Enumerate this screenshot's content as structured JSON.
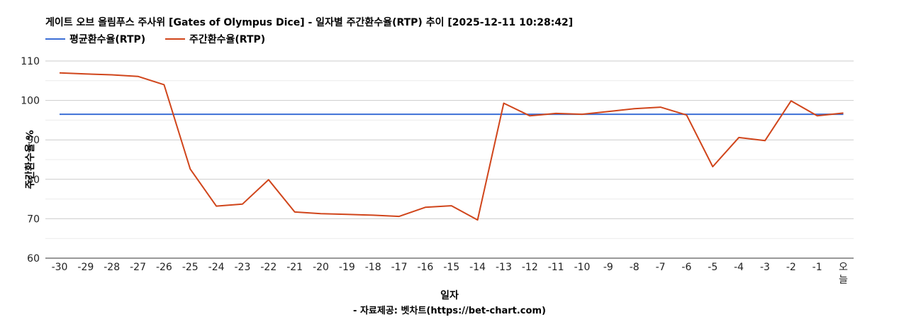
{
  "chart_data": {
    "type": "line",
    "title": "게이트 오브 올림푸스 주사위 [Gates of Olympus Dice] - 일자별 주간환수율(RTP) 추이 [2025-12-11 10:28:42]",
    "xlabel": "일자",
    "ylabel": "주간환수율 %",
    "source": "- 자료제공: 벳차트(https://bet-chart.com)",
    "categories": [
      "-30",
      "-29",
      "-28",
      "-27",
      "-26",
      "-25",
      "-24",
      "-23",
      "-22",
      "-21",
      "-20",
      "-19",
      "-18",
      "-17",
      "-16",
      "-15",
      "-14",
      "-13",
      "-12",
      "-11",
      "-10",
      "-9",
      "-8",
      "-7",
      "-6",
      "-5",
      "-4",
      "-3",
      "-2",
      "-1",
      "오늘"
    ],
    "ylim": [
      60,
      110
    ],
    "yticks": [
      "60",
      "70",
      "80",
      "90",
      "100",
      "110"
    ],
    "grid": true,
    "legend_position": "top-left",
    "series": [
      {
        "name": "평균환수율(RTP)",
        "color": "#3c6fd6",
        "values": [
          96.5,
          96.5,
          96.5,
          96.5,
          96.5,
          96.5,
          96.5,
          96.5,
          96.5,
          96.5,
          96.5,
          96.5,
          96.5,
          96.5,
          96.5,
          96.5,
          96.5,
          96.5,
          96.5,
          96.5,
          96.5,
          96.5,
          96.5,
          96.5,
          96.5,
          96.5,
          96.5,
          96.5,
          96.5,
          96.5,
          96.5
        ]
      },
      {
        "name": "주간환수율(RTP)",
        "color": "#d0451b",
        "values": [
          107.0,
          106.7,
          106.5,
          106.1,
          104.0,
          82.6,
          73.2,
          73.7,
          79.9,
          71.7,
          71.3,
          71.1,
          70.9,
          70.6,
          72.9,
          73.3,
          69.7,
          99.3,
          96.1,
          96.7,
          96.5,
          97.2,
          97.9,
          98.3,
          96.3,
          83.2,
          90.6,
          89.8,
          99.9,
          96.1,
          96.8
        ]
      }
    ]
  }
}
